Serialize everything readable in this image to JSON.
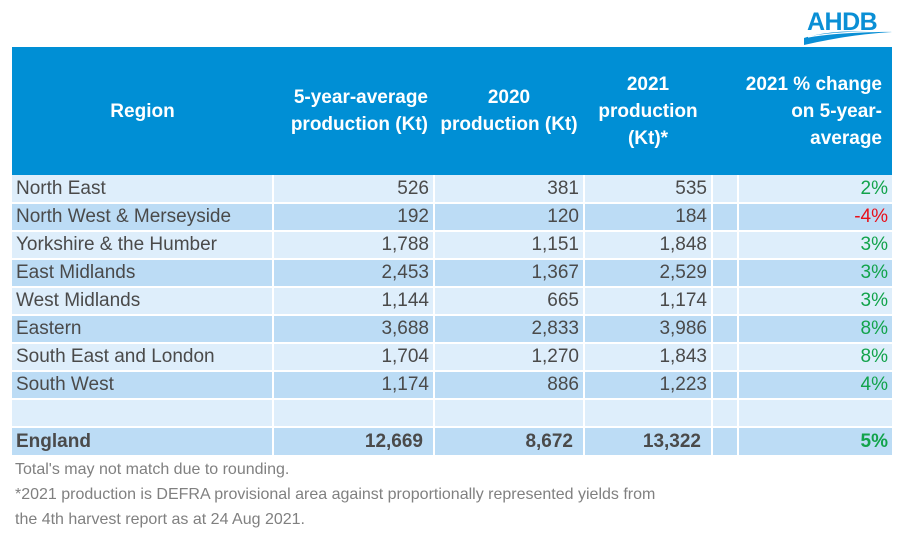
{
  "logo": {
    "text": "AHDB",
    "icon": "ahdb-wave-logo"
  },
  "colors": {
    "header_bg": "#008fd5",
    "row_light": "#deeefb",
    "row_dark": "#bcdcf5",
    "positive": "#12a34b",
    "negative": "#e8101a"
  },
  "table": {
    "headers": [
      "Region",
      "5-year-average production (Kt)",
      "2020 production (Kt)",
      "2021 production (Kt)*",
      "",
      "2021 % change on 5-year-average"
    ],
    "rows": [
      {
        "region": "North East",
        "avg5": "526",
        "p2020": "381",
        "p2021": "535",
        "change": "2%",
        "sign": "pos"
      },
      {
        "region": "North West & Merseyside",
        "avg5": "192",
        "p2020": "120",
        "p2021": "184",
        "change": "-4%",
        "sign": "neg"
      },
      {
        "region": "Yorkshire & the Humber",
        "avg5": "1,788",
        "p2020": "1,151",
        "p2021": "1,848",
        "change": "3%",
        "sign": "pos"
      },
      {
        "region": "East Midlands",
        "avg5": "2,453",
        "p2020": "1,367",
        "p2021": "2,529",
        "change": "3%",
        "sign": "pos"
      },
      {
        "region": "West Midlands",
        "avg5": "1,144",
        "p2020": "665",
        "p2021": "1,174",
        "change": "3%",
        "sign": "pos"
      },
      {
        "region": "Eastern",
        "avg5": "3,688",
        "p2020": "2,833",
        "p2021": "3,986",
        "change": "8%",
        "sign": "pos"
      },
      {
        "region": "South East and London",
        "avg5": "1,704",
        "p2020": "1,270",
        "p2021": "1,843",
        "change": "8%",
        "sign": "pos"
      },
      {
        "region": "South West",
        "avg5": "1,174",
        "p2020": "886",
        "p2021": "1,223",
        "change": "4%",
        "sign": "pos"
      },
      {
        "region": "",
        "avg5": "",
        "p2020": "",
        "p2021": "",
        "change": "",
        "sign": ""
      },
      {
        "region": "England",
        "avg5": "12,669",
        "p2020": "8,672",
        "p2021": "13,322",
        "change": "5%",
        "sign": "pos"
      }
    ]
  },
  "notes": [
    "Total's may not match due to rounding.",
    "*2021 production is DEFRA provisional area against proportionally represented yields from",
    "the 4th harvest report as at 24 Aug 2021."
  ]
}
